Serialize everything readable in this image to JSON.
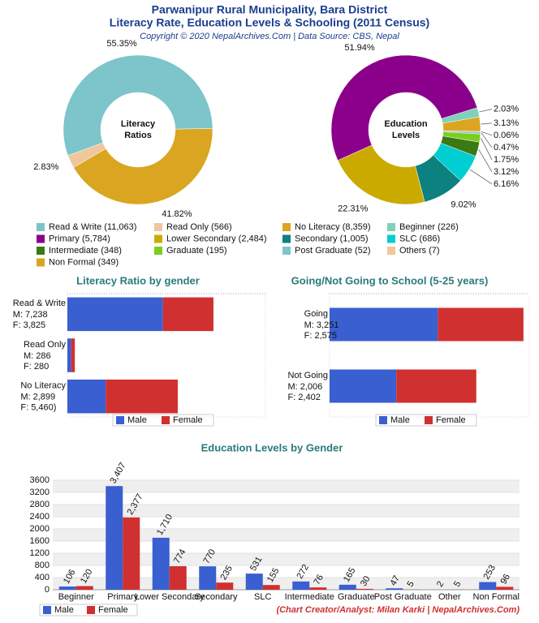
{
  "header": {
    "title_lines": [
      "Parwanipur Rural Municipality, Bara District",
      "Literacy Rate, Education Levels & Schooling (2011 Census)"
    ],
    "copyright": "Copyright © 2020 NepalArchives.Com | Data Source: CBS, Nepal"
  },
  "chart_data": [
    {
      "type": "donut",
      "center_label": [
        "Literacy",
        "Ratios"
      ],
      "categories": [
        "Read & Write (11,063)",
        "Read Only (566)",
        "No Literacy (8,359)"
      ],
      "values": [
        55.35,
        2.83,
        41.82
      ],
      "value_labels": [
        "55.35%",
        "2.83%",
        "41.82%"
      ],
      "colors": [
        "#7dc4cb",
        "#f0c69c",
        "#daa520"
      ]
    },
    {
      "type": "donut",
      "center_label": [
        "Education",
        "Levels"
      ],
      "categories": [
        "Beginner (226)",
        "Primary (5,784)",
        "Lower Secondary (2,484)",
        "Secondary (1,005)",
        "SLC (686)",
        "Intermediate (348)",
        "Graduate (195)",
        "Post Graduate (52)",
        "Others (7)",
        "Non Formal (349)"
      ],
      "values": [
        2.03,
        51.94,
        22.31,
        9.02,
        6.16,
        3.12,
        1.75,
        0.47,
        0.06,
        3.13
      ],
      "value_labels": [
        "2.03%",
        "51.94%",
        "22.31%",
        "9.02%",
        "6.16%",
        "3.12%",
        "1.75%",
        "0.47%",
        "0.06%",
        "3.13%"
      ],
      "colors": [
        "#7fd1b9",
        "#8b008b",
        "#cbaa00",
        "#0d8080",
        "#00ced1",
        "#3a7a14",
        "#7ccd1c",
        "#7fc4cc",
        "#f0c69c",
        "#daa520"
      ]
    },
    {
      "type": "stacked_hbar",
      "title": "Literacy Ratio by gender",
      "categories": [
        "Read & Write",
        "Read Only",
        "No Literacy"
      ],
      "series": [
        {
          "name": "Male",
          "color": "#3a5fd0",
          "values": [
            7238,
            286,
            2899
          ],
          "value_labels": [
            "M: 7,238",
            "M: 286",
            "M: 2,899"
          ]
        },
        {
          "name": "Female",
          "color": "#d03030",
          "values": [
            3825,
            280,
            5460
          ],
          "value_labels": [
            "F: 3,825",
            "F: 280",
            "F: 5,460)"
          ]
        }
      ],
      "xlim": [
        0,
        15000
      ]
    },
    {
      "type": "stacked_hbar",
      "title": "Going/Not Going to School (5-25 years)",
      "categories": [
        "Going",
        "Not Going"
      ],
      "series": [
        {
          "name": "Male",
          "color": "#3a5fd0",
          "values": [
            3251,
            2006
          ],
          "value_labels": [
            "M: 3,251",
            "M: 2,006"
          ]
        },
        {
          "name": "Female",
          "color": "#d03030",
          "values": [
            2575,
            2402
          ],
          "value_labels": [
            "F: 2,575",
            "F: 2,402"
          ]
        }
      ],
      "xlim": [
        0,
        6000
      ]
    },
    {
      "type": "grouped_bar",
      "title": "Education Levels by Gender",
      "categories": [
        "Beginner",
        "Primary",
        "Lower Secondary",
        "Secondary",
        "SLC",
        "Intermediate",
        "Graduate",
        "Post Graduate",
        "Other",
        "Non Formal"
      ],
      "series": [
        {
          "name": "Male",
          "color": "#3a5fd0",
          "values": [
            106,
            3407,
            1710,
            770,
            531,
            272,
            165,
            47,
            2,
            253
          ],
          "value_labels": [
            "106",
            "3,407",
            "1,710",
            "770",
            "531",
            "272",
            "165",
            "47",
            "2",
            "253"
          ]
        },
        {
          "name": "Female",
          "color": "#d03030",
          "values": [
            120,
            2377,
            774,
            235,
            155,
            76,
            30,
            5,
            5,
            96
          ],
          "value_labels": [
            "120",
            "2,377",
            "774",
            "235",
            "155",
            "76",
            "30",
            "5",
            "5",
            "96"
          ]
        }
      ],
      "ylim": [
        0,
        3600
      ],
      "yticks": [
        0,
        400,
        800,
        1200,
        1600,
        2000,
        2400,
        2800,
        3200,
        3600
      ],
      "grid": true
    }
  ],
  "footer": "(Chart Creator/Analyst: Milan Karki | NepalArchives.Com)"
}
